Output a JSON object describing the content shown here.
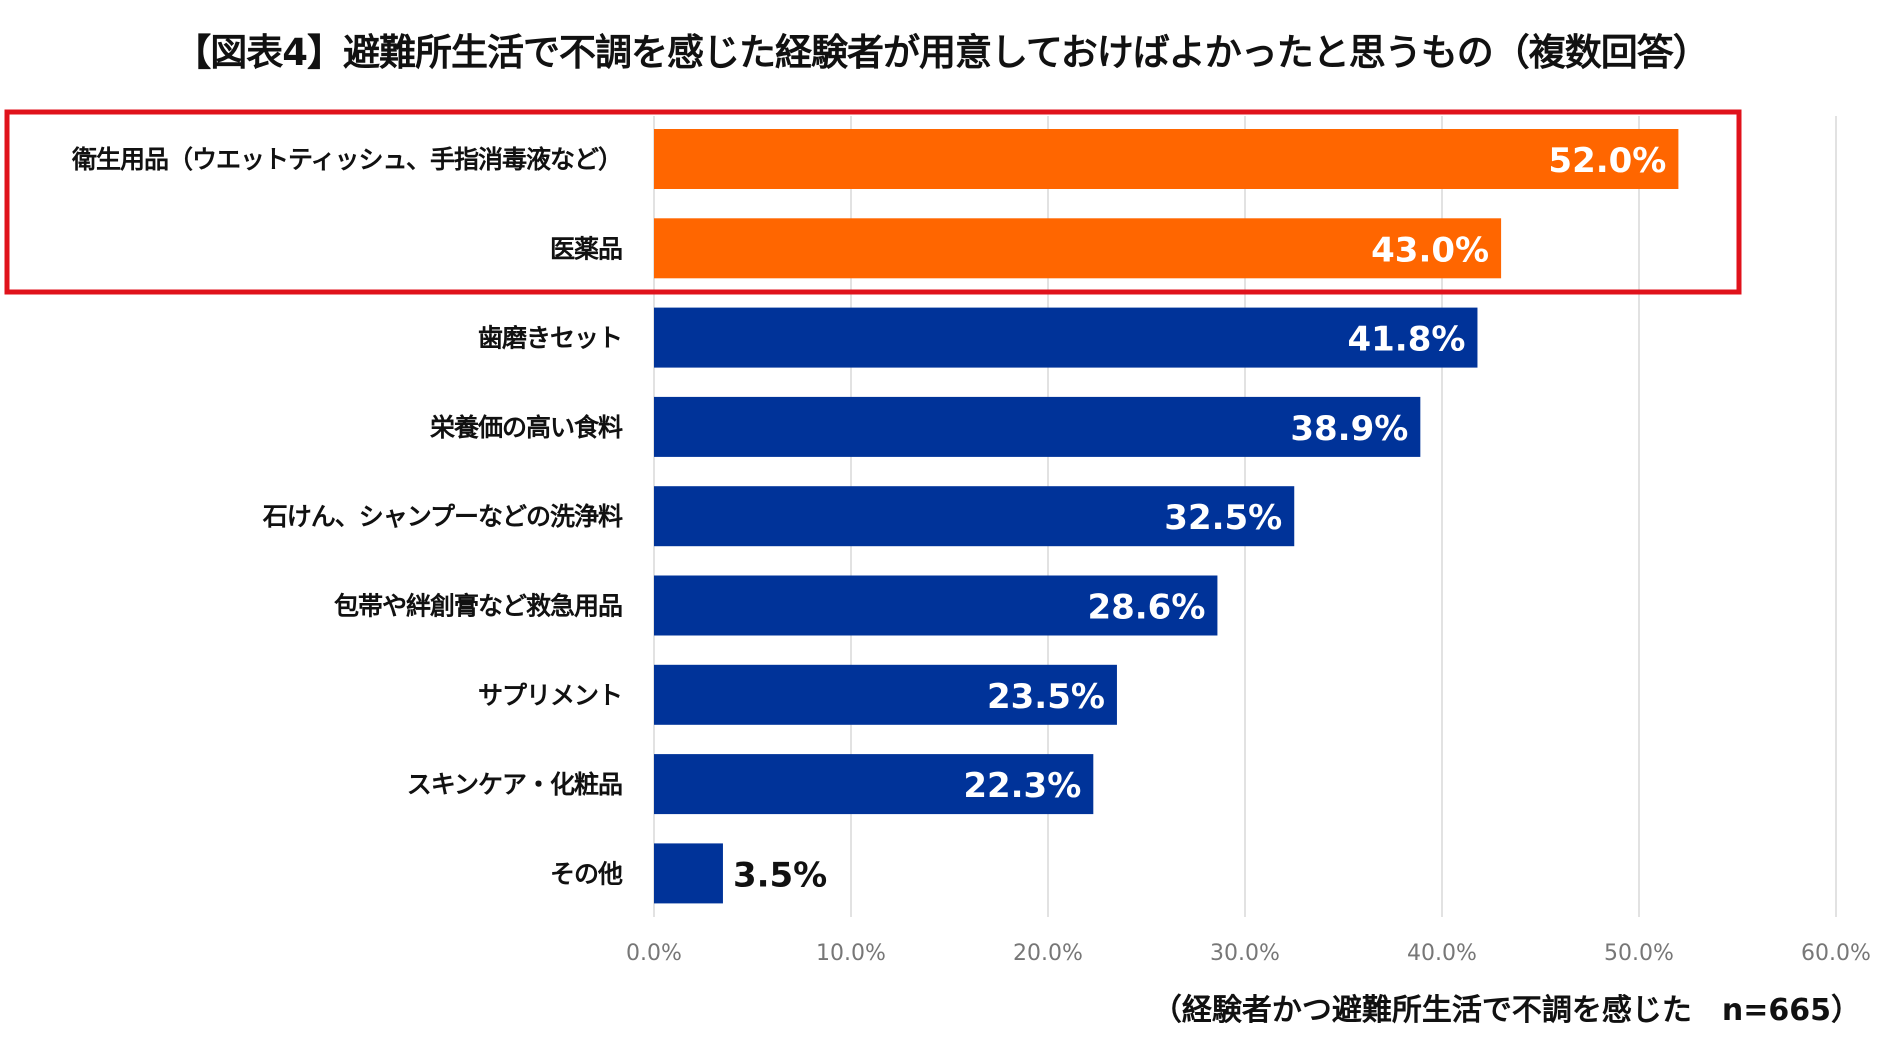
{
  "chart_data": {
    "type": "bar",
    "orientation": "horizontal",
    "title": "【図表4】避難所生活で不調を感じた経験者が用意しておけばよかったと思うもの（複数回答）",
    "categories": [
      "衛生用品（ウエットティッシュ、手指消毒液など）",
      "医薬品",
      "歯磨きセット",
      "栄養価の高い食料",
      "石けん、シャンプーなどの洗浄料",
      "包帯や絆創膏など救急用品",
      "サプリメント",
      "スキンケア・化粧品",
      "その他"
    ],
    "values": [
      52.0,
      43.0,
      41.8,
      38.9,
      32.5,
      28.6,
      23.5,
      22.3,
      3.5
    ],
    "value_labels": [
      "52.0%",
      "43.0%",
      "41.8%",
      "38.9%",
      "32.5%",
      "28.6%",
      "23.5%",
      "22.3%",
      "3.5%"
    ],
    "highlighted": [
      true,
      true,
      false,
      false,
      false,
      false,
      false,
      false,
      false
    ],
    "xlim": [
      0,
      60
    ],
    "xticks": [
      "0.0%",
      "10.0%",
      "20.0%",
      "30.0%",
      "40.0%",
      "50.0%",
      "60.0%"
    ],
    "grid": true,
    "colors": {
      "highlight": "#FF6600",
      "default": "#003399",
      "highlight_box": "#E0121B",
      "grid": "#D9D9D9"
    },
    "note": "（経験者かつ避難所生活で不調を感じた　n=665）"
  }
}
